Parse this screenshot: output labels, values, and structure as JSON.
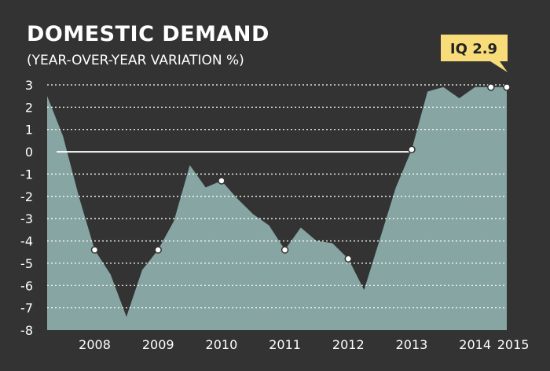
{
  "chart_data": {
    "type": "area",
    "title": "DOMESTIC DEMAND",
    "subtitle": "(YEAR-OVER-YEAR VARIATION %)",
    "xlabel": "",
    "ylabel": "",
    "ylim": [
      -8,
      3
    ],
    "yticks": [
      3,
      2,
      1,
      0,
      -1,
      -2,
      -3,
      -4,
      -5,
      -6,
      -7,
      -8
    ],
    "xticks": [
      {
        "label": "2008",
        "x": 2008.0
      },
      {
        "label": "2009",
        "x": 2009.0
      },
      {
        "label": "2010",
        "x": 2010.0
      },
      {
        "label": "2011",
        "x": 2011.0
      },
      {
        "label": "2012",
        "x": 2012.0
      },
      {
        "label": "2013",
        "x": 2013.0
      },
      {
        "label": "2014",
        "x": 2014.0
      },
      {
        "label": "2015",
        "x": 2014.6
      }
    ],
    "grid": "horizontal-dotted",
    "x": [
      2007.25,
      2007.5,
      2007.75,
      2008.0,
      2008.25,
      2008.5,
      2008.75,
      2009.0,
      2009.25,
      2009.5,
      2009.75,
      2010.0,
      2010.25,
      2010.5,
      2010.75,
      2011.0,
      2011.25,
      2011.5,
      2011.75,
      2012.0,
      2012.25,
      2012.5,
      2012.75,
      2013.0,
      2013.25,
      2013.5,
      2013.75,
      2014.0,
      2014.25,
      2014.5
    ],
    "values": [
      2.5,
      0.7,
      -2.0,
      -4.4,
      -5.5,
      -7.4,
      -5.3,
      -4.4,
      -3.1,
      -0.6,
      -1.6,
      -1.3,
      -2.1,
      -2.8,
      -3.3,
      -4.4,
      -3.4,
      -4.0,
      -4.1,
      -4.8,
      -6.2,
      -3.9,
      -1.6,
      0.1,
      2.7,
      2.9,
      2.4,
      2.9,
      2.9,
      2.9
    ],
    "marked_x": [
      2008.0,
      2009.0,
      2010.0,
      2011.0,
      2012.0,
      2013.0,
      2014.25,
      2014.5
    ],
    "badge": "IQ 2.9",
    "colors": {
      "background": "#333333",
      "area": "#86a5a3",
      "grid": "#ffffff",
      "badge": "#f8dc7a"
    }
  }
}
